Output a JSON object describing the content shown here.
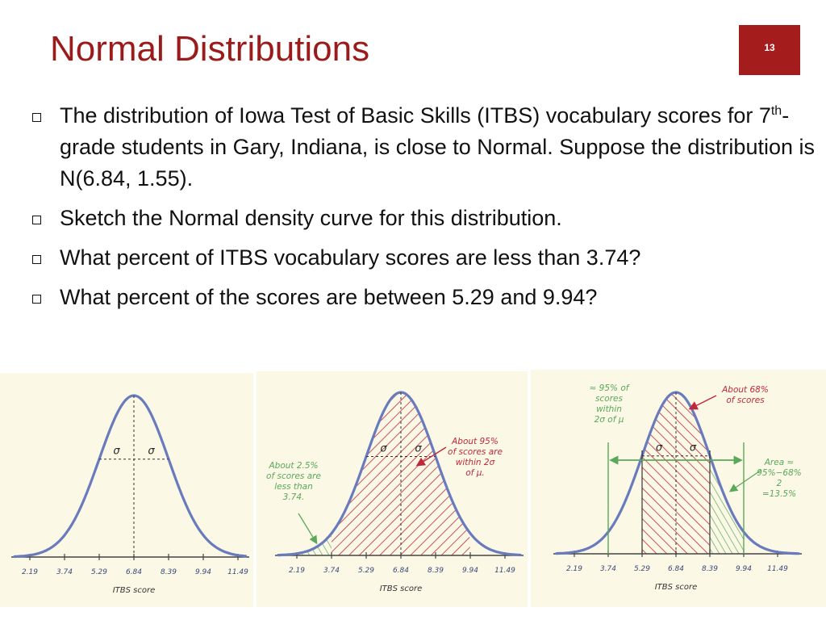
{
  "slide": {
    "title": "Normal Distributions",
    "number": "13"
  },
  "bullets": [
    {
      "pre": "The distribution of Iowa Test of Basic Skills (ITBS) vocabulary scores for 7",
      "sup": "th",
      "post": "-grade students in Gary, Indiana, is close to Normal.  Suppose the distribution is N(6.84, 1.55)."
    },
    {
      "text": "Sketch the Normal density curve for this distribution."
    },
    {
      "text": "What percent of ITBS vocabulary scores are less than 3.74?"
    },
    {
      "text": "What percent of the scores are between 5.29 and 9.94?"
    }
  ],
  "figures": {
    "tick_labels": [
      "2.19",
      "3.74",
      "5.29",
      "6.84",
      "8.39",
      "9.94",
      "11.49"
    ],
    "axis_label": "ITBS score",
    "sigma": "σ",
    "fig2": {
      "note_left": [
        "About 2.5%",
        "of scores are",
        "less than",
        "3.74."
      ],
      "note_right": [
        "About 95%",
        "of scores are",
        "within 2σ",
        "of μ."
      ]
    },
    "fig3": {
      "note_left": [
        "≈ 95% of",
        "scores",
        "within",
        "2σ of μ"
      ],
      "note_top": [
        "About 68%",
        "of scores"
      ],
      "note_right": [
        "Area ≈",
        "95%−68%",
        "2",
        "=13.5%"
      ]
    }
  },
  "colors": {
    "title": "#9b1b1b",
    "badge": "#a51c1c",
    "panel": "#fbf8e6",
    "curve": "#6a7bbd",
    "red": "#c0283a",
    "green": "#5aa85a"
  }
}
